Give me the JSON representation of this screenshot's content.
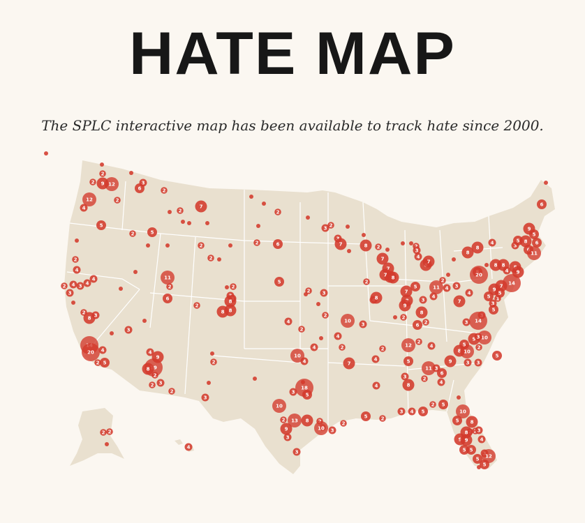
{
  "header": {
    "title": "HATE MAP",
    "subtitle": "The SPLC interactive map has been available to track hate since 2000."
  },
  "map": {
    "land_color": "#e9e0cf",
    "border_color": "#ffffff",
    "marker_color": "#d33a2c",
    "label_color": "#ffffff"
  }
}
